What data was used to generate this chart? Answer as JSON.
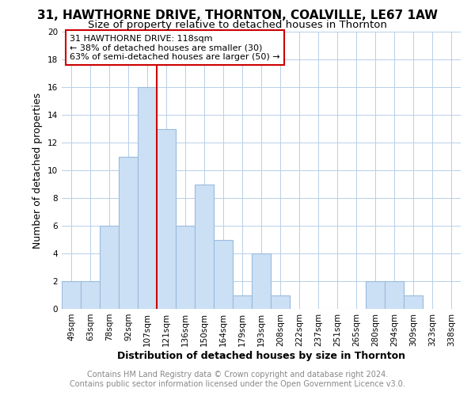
{
  "title": "31, HAWTHORNE DRIVE, THORNTON, COALVILLE, LE67 1AW",
  "subtitle": "Size of property relative to detached houses in Thornton",
  "xlabel": "Distribution of detached houses by size in Thornton",
  "ylabel": "Number of detached properties",
  "categories": [
    "49sqm",
    "63sqm",
    "78sqm",
    "92sqm",
    "107sqm",
    "121sqm",
    "136sqm",
    "150sqm",
    "164sqm",
    "179sqm",
    "193sqm",
    "208sqm",
    "222sqm",
    "237sqm",
    "251sqm",
    "265sqm",
    "280sqm",
    "294sqm",
    "309sqm",
    "323sqm",
    "338sqm"
  ],
  "values": [
    2,
    2,
    6,
    11,
    16,
    13,
    6,
    9,
    5,
    1,
    4,
    1,
    0,
    0,
    0,
    0,
    2,
    2,
    1,
    0,
    0
  ],
  "bar_color": "#cce0f5",
  "bar_edge_color": "#99bbdd",
  "property_line_color": "#cc0000",
  "annotation_text": "31 HAWTHORNE DRIVE: 118sqm\n← 38% of detached houses are smaller (30)\n63% of semi-detached houses are larger (50) →",
  "annotation_box_color": "#ffffff",
  "annotation_box_edge_color": "#cc0000",
  "ylim": [
    0,
    20
  ],
  "yticks": [
    0,
    2,
    4,
    6,
    8,
    10,
    12,
    14,
    16,
    18,
    20
  ],
  "grid_color": "#b8cfe8",
  "plot_bg_color": "#ffffff",
  "fig_bg_color": "#ffffff",
  "footer_text": "Contains HM Land Registry data © Crown copyright and database right 2024.\nContains public sector information licensed under the Open Government Licence v3.0.",
  "title_fontsize": 11,
  "subtitle_fontsize": 9.5,
  "axis_label_fontsize": 9,
  "tick_fontsize": 7.5,
  "footer_fontsize": 7,
  "annotation_fontsize": 8,
  "property_line_index": 5
}
